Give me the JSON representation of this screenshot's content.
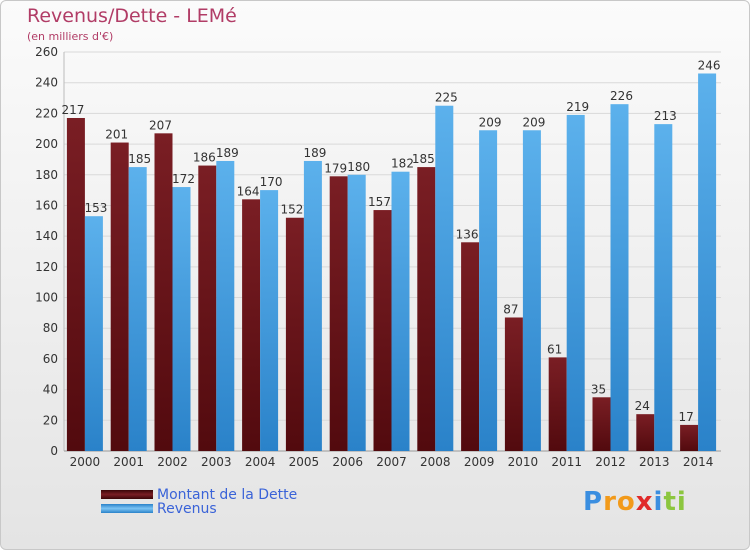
{
  "title": "Revenus/Dette - LEMé",
  "subtitle": "(en milliers d'€)",
  "brand": {
    "letters": [
      "P",
      "r",
      "o",
      "x",
      "i",
      "t",
      "i"
    ],
    "colors": [
      "#3a8ee0",
      "#f29a1a",
      "#f29a1a",
      "#e02a2a",
      "#3a8ee0",
      "#8cc63f",
      "#8cc63f"
    ]
  },
  "colors": {
    "debt": "#7a1e24",
    "debt_dark": "#520a0e",
    "revenue": "#49a5e6",
    "revenue_dark": "#2a82c9",
    "title": "#b13c66",
    "legend_text": "#3a63d8"
  },
  "chart_data": {
    "type": "bar",
    "categories": [
      "2000",
      "2001",
      "2002",
      "2003",
      "2004",
      "2005",
      "2006",
      "2007",
      "2008",
      "2009",
      "2010",
      "2011",
      "2012",
      "2013",
      "2014"
    ],
    "series": [
      {
        "name": "Montant de la Dette",
        "values": [
          217,
          201,
          207,
          186,
          164,
          152,
          179,
          157,
          185,
          136,
          87,
          61,
          35,
          24,
          17
        ],
        "labels": [
          "217",
          "201",
          "207",
          "186",
          "164",
          "152",
          "179",
          "157",
          "185",
          "136",
          "87",
          "61",
          "35",
          "24",
          "17"
        ]
      },
      {
        "name": "Revenus",
        "values": [
          153,
          185,
          172,
          189,
          170,
          189,
          180,
          182,
          225,
          209,
          209,
          219,
          226,
          213,
          246
        ],
        "labels": [
          "153",
          "185",
          "172",
          "189",
          "170",
          "189",
          "180",
          "182",
          "225",
          "209",
          "209",
          "219",
          "226",
          "213",
          "246"
        ]
      }
    ],
    "ylim": [
      0,
      260
    ],
    "yticks": [
      0,
      20,
      40,
      60,
      80,
      100,
      120,
      140,
      160,
      180,
      200,
      220,
      240,
      260
    ],
    "ytick_labels": [
      "0",
      "20",
      "40",
      "60",
      "80",
      "100",
      "120",
      "140",
      "160",
      "180",
      "200",
      "220",
      "240",
      "260"
    ],
    "grid": true,
    "legend_position": "bottom-left"
  }
}
